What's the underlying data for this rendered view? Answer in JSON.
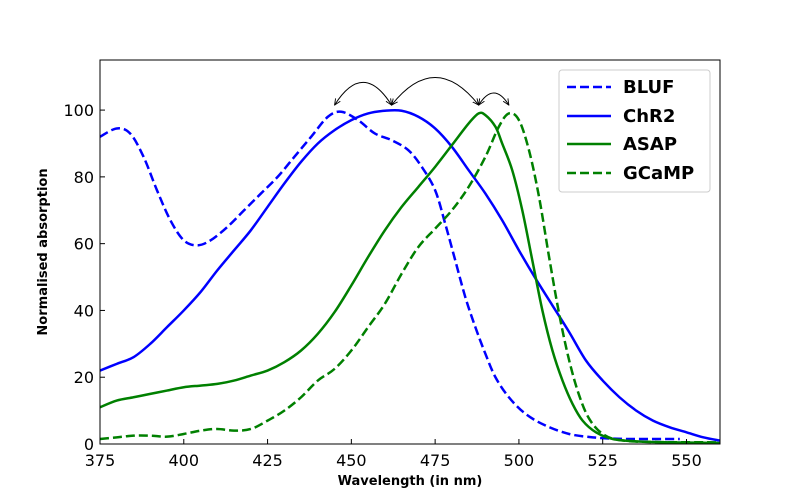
{
  "chart_data": {
    "type": "line",
    "title": "",
    "xlabel": "Wavelength (in nm)",
    "ylabel": "Normalised absorption",
    "xlim": [
      375,
      560
    ],
    "ylim": [
      0,
      115
    ],
    "xticks": [
      375,
      400,
      425,
      450,
      475,
      500,
      525,
      550
    ],
    "yticks": [
      0,
      20,
      40,
      60,
      80,
      100
    ],
    "legend_position": "upper-right",
    "grid": false,
    "series": [
      {
        "name": "BLUF",
        "color": "#0000ff",
        "style": "dashed",
        "points": [
          [
            375,
            92
          ],
          [
            380,
            94.5
          ],
          [
            384,
            93
          ],
          [
            388,
            86
          ],
          [
            392,
            76
          ],
          [
            396,
            67
          ],
          [
            400,
            61
          ],
          [
            404,
            59.5
          ],
          [
            408,
            61
          ],
          [
            413,
            65
          ],
          [
            418,
            70
          ],
          [
            423,
            75
          ],
          [
            428,
            80
          ],
          [
            433,
            86
          ],
          [
            438,
            92
          ],
          [
            443,
            98
          ],
          [
            447,
            99.5
          ],
          [
            452,
            97
          ],
          [
            457,
            93
          ],
          [
            462,
            91
          ],
          [
            467,
            88
          ],
          [
            471,
            83
          ],
          [
            475,
            76
          ],
          [
            478,
            66
          ],
          [
            481,
            55
          ],
          [
            484,
            44
          ],
          [
            487,
            35
          ],
          [
            490,
            27
          ],
          [
            493,
            20
          ],
          [
            497,
            14
          ],
          [
            502,
            9
          ],
          [
            508,
            5.5
          ],
          [
            515,
            3
          ],
          [
            522,
            2
          ],
          [
            528,
            1.6
          ],
          [
            535,
            1.5
          ],
          [
            548,
            1.5
          ]
        ]
      },
      {
        "name": "ChR2",
        "color": "#0000ff",
        "style": "solid",
        "points": [
          [
            375,
            22
          ],
          [
            380,
            24
          ],
          [
            385,
            26
          ],
          [
            390,
            30
          ],
          [
            395,
            35
          ],
          [
            400,
            40
          ],
          [
            405,
            45.5
          ],
          [
            410,
            52
          ],
          [
            415,
            58
          ],
          [
            420,
            64
          ],
          [
            425,
            71
          ],
          [
            430,
            78
          ],
          [
            435,
            84.5
          ],
          [
            440,
            90
          ],
          [
            445,
            94
          ],
          [
            450,
            97
          ],
          [
            455,
            99
          ],
          [
            460,
            99.8
          ],
          [
            465,
            99.8
          ],
          [
            470,
            98
          ],
          [
            475,
            94.5
          ],
          [
            480,
            89
          ],
          [
            485,
            82
          ],
          [
            490,
            75
          ],
          [
            495,
            67
          ],
          [
            500,
            58
          ],
          [
            505,
            49.5
          ],
          [
            510,
            41.5
          ],
          [
            515,
            33.5
          ],
          [
            520,
            25
          ],
          [
            525,
            19
          ],
          [
            530,
            14
          ],
          [
            535,
            10
          ],
          [
            540,
            7
          ],
          [
            545,
            5
          ],
          [
            550,
            3.5
          ],
          [
            555,
            2
          ],
          [
            560,
            1
          ]
        ]
      },
      {
        "name": "ASAP",
        "color": "#008000",
        "style": "solid",
        "points": [
          [
            375,
            11
          ],
          [
            380,
            13
          ],
          [
            385,
            14
          ],
          [
            390,
            15
          ],
          [
            395,
            16
          ],
          [
            400,
            17
          ],
          [
            405,
            17.5
          ],
          [
            410,
            18
          ],
          [
            415,
            19
          ],
          [
            420,
            20.5
          ],
          [
            425,
            22
          ],
          [
            430,
            24.5
          ],
          [
            435,
            28
          ],
          [
            440,
            33
          ],
          [
            445,
            39.5
          ],
          [
            450,
            47.5
          ],
          [
            455,
            56
          ],
          [
            460,
            64
          ],
          [
            465,
            71
          ],
          [
            470,
            77
          ],
          [
            475,
            83
          ],
          [
            480,
            89.5
          ],
          [
            485,
            96
          ],
          [
            488,
            99
          ],
          [
            490,
            98.5
          ],
          [
            493,
            95
          ],
          [
            495,
            90
          ],
          [
            498,
            82
          ],
          [
            501,
            70
          ],
          [
            504,
            55
          ],
          [
            507,
            40
          ],
          [
            510,
            28
          ],
          [
            513,
            19
          ],
          [
            516,
            12
          ],
          [
            519,
            7
          ],
          [
            523,
            3.5
          ],
          [
            528,
            1.5
          ],
          [
            535,
            0.8
          ],
          [
            545,
            0.5
          ],
          [
            560,
            0.3
          ]
        ]
      },
      {
        "name": "GCaMP",
        "color": "#008000",
        "style": "dashed",
        "points": [
          [
            375,
            1.5
          ],
          [
            380,
            2
          ],
          [
            385,
            2.5
          ],
          [
            390,
            2.5
          ],
          [
            395,
            2.2
          ],
          [
            400,
            3
          ],
          [
            405,
            4
          ],
          [
            410,
            4.5
          ],
          [
            415,
            4
          ],
          [
            420,
            4.5
          ],
          [
            425,
            7
          ],
          [
            430,
            10
          ],
          [
            435,
            14
          ],
          [
            440,
            19
          ],
          [
            445,
            22.5
          ],
          [
            450,
            28
          ],
          [
            455,
            35
          ],
          [
            460,
            42
          ],
          [
            465,
            51
          ],
          [
            470,
            59
          ],
          [
            475,
            64.5
          ],
          [
            480,
            70
          ],
          [
            485,
            77
          ],
          [
            490,
            86
          ],
          [
            494,
            95
          ],
          [
            497,
            99
          ],
          [
            500,
            97
          ],
          [
            503,
            88
          ],
          [
            506,
            74
          ],
          [
            509,
            56
          ],
          [
            512,
            39
          ],
          [
            515,
            25
          ],
          [
            518,
            14.5
          ],
          [
            521,
            7.5
          ],
          [
            525,
            3
          ],
          [
            530,
            1.2
          ],
          [
            540,
            0.6
          ],
          [
            560,
            0.5
          ]
        ]
      }
    ],
    "annotations": [
      {
        "type": "double-arrow",
        "from_x": 445,
        "to_x": 462,
        "y": 100
      },
      {
        "type": "double-arrow",
        "from_x": 462,
        "to_x": 488,
        "y": 100
      },
      {
        "type": "double-arrow",
        "from_x": 488,
        "to_x": 497,
        "y": 100
      }
    ]
  }
}
